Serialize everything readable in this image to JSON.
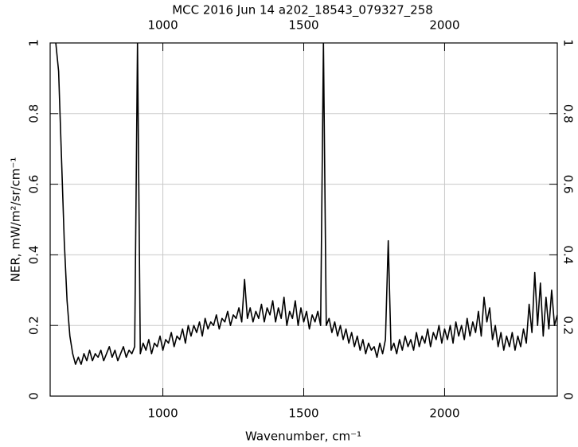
{
  "chart_data": {
    "type": "line",
    "title": "MCC 2016 Jun 14 a202_18543_079327_258",
    "xlabel": "Wavenumber, cm⁻¹",
    "ylabel": "NER, mW/m²/sr/cm⁻¹",
    "xlim": [
      600,
      2400
    ],
    "xticks": [
      1000,
      1500,
      2000
    ],
    "ylim": [
      0,
      1
    ],
    "yticks": [
      0,
      0.2,
      0.4,
      0.6,
      0.8,
      1
    ],
    "grid": true,
    "x": [
      620,
      630,
      640,
      650,
      660,
      670,
      680,
      690,
      700,
      710,
      720,
      730,
      740,
      750,
      760,
      770,
      780,
      790,
      800,
      810,
      820,
      830,
      840,
      850,
      860,
      870,
      880,
      890,
      900,
      910,
      920,
      930,
      940,
      950,
      960,
      970,
      980,
      990,
      1000,
      1010,
      1020,
      1030,
      1040,
      1050,
      1060,
      1070,
      1080,
      1090,
      1100,
      1110,
      1120,
      1130,
      1140,
      1150,
      1160,
      1170,
      1180,
      1190,
      1200,
      1210,
      1220,
      1230,
      1240,
      1250,
      1260,
      1270,
      1280,
      1290,
      1300,
      1310,
      1320,
      1330,
      1340,
      1350,
      1360,
      1370,
      1380,
      1390,
      1400,
      1410,
      1420,
      1430,
      1440,
      1450,
      1460,
      1470,
      1480,
      1490,
      1500,
      1510,
      1520,
      1530,
      1540,
      1550,
      1560,
      1570,
      1580,
      1590,
      1600,
      1610,
      1620,
      1630,
      1640,
      1650,
      1660,
      1670,
      1680,
      1690,
      1700,
      1710,
      1720,
      1730,
      1740,
      1750,
      1760,
      1770,
      1780,
      1790,
      1800,
      1810,
      1820,
      1830,
      1840,
      1850,
      1860,
      1870,
      1880,
      1890,
      1900,
      1910,
      1920,
      1930,
      1940,
      1950,
      1960,
      1970,
      1980,
      1990,
      2000,
      2010,
      2020,
      2030,
      2040,
      2050,
      2060,
      2070,
      2080,
      2090,
      2100,
      2110,
      2120,
      2130,
      2140,
      2150,
      2160,
      2170,
      2180,
      2190,
      2200,
      2210,
      2220,
      2230,
      2240,
      2250,
      2260,
      2270,
      2280,
      2290,
      2300,
      2310,
      2320,
      2330,
      2340,
      2350,
      2360,
      2370,
      2380,
      2390,
      2400
    ],
    "series": [
      {
        "color": "#000000",
        "values": [
          1.0,
          0.92,
          0.68,
          0.44,
          0.27,
          0.17,
          0.12,
          0.09,
          0.11,
          0.09,
          0.12,
          0.1,
          0.13,
          0.1,
          0.12,
          0.11,
          0.13,
          0.1,
          0.12,
          0.14,
          0.11,
          0.13,
          0.1,
          0.12,
          0.14,
          0.11,
          0.13,
          0.12,
          0.14,
          1.0,
          0.12,
          0.15,
          0.13,
          0.16,
          0.12,
          0.15,
          0.14,
          0.17,
          0.13,
          0.16,
          0.15,
          0.18,
          0.14,
          0.17,
          0.16,
          0.19,
          0.15,
          0.2,
          0.17,
          0.2,
          0.18,
          0.21,
          0.17,
          0.22,
          0.19,
          0.21,
          0.2,
          0.23,
          0.19,
          0.22,
          0.21,
          0.24,
          0.2,
          0.23,
          0.22,
          0.25,
          0.21,
          0.33,
          0.22,
          0.25,
          0.21,
          0.24,
          0.22,
          0.26,
          0.21,
          0.25,
          0.23,
          0.27,
          0.21,
          0.25,
          0.22,
          0.28,
          0.2,
          0.24,
          0.22,
          0.27,
          0.2,
          0.25,
          0.21,
          0.24,
          0.19,
          0.23,
          0.21,
          0.24,
          0.2,
          1.0,
          0.2,
          0.22,
          0.18,
          0.21,
          0.17,
          0.2,
          0.16,
          0.19,
          0.15,
          0.18,
          0.14,
          0.17,
          0.13,
          0.16,
          0.12,
          0.15,
          0.13,
          0.14,
          0.11,
          0.15,
          0.12,
          0.16,
          0.44,
          0.13,
          0.15,
          0.12,
          0.16,
          0.13,
          0.17,
          0.14,
          0.16,
          0.13,
          0.18,
          0.14,
          0.17,
          0.15,
          0.19,
          0.14,
          0.18,
          0.16,
          0.2,
          0.15,
          0.19,
          0.16,
          0.2,
          0.15,
          0.21,
          0.17,
          0.2,
          0.16,
          0.22,
          0.17,
          0.21,
          0.18,
          0.24,
          0.17,
          0.28,
          0.21,
          0.25,
          0.16,
          0.2,
          0.14,
          0.18,
          0.13,
          0.17,
          0.14,
          0.18,
          0.13,
          0.17,
          0.14,
          0.19,
          0.15,
          0.26,
          0.18,
          0.35,
          0.2,
          0.32,
          0.17,
          0.28,
          0.19,
          0.3,
          0.2,
          0.23
        ]
      }
    ]
  }
}
